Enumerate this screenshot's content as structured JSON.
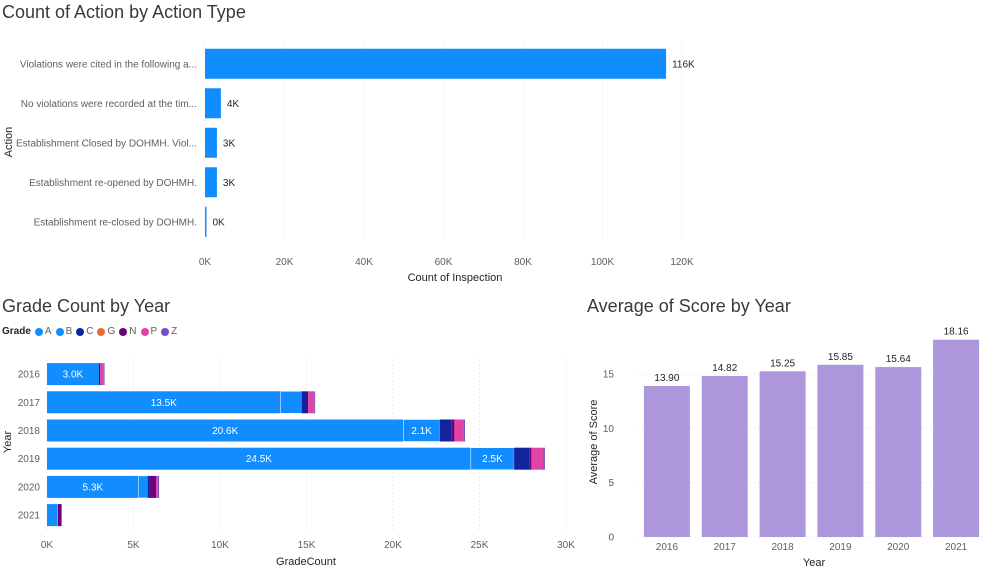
{
  "colors": {
    "A": "#118dff",
    "B": "#118dff",
    "C": "#12239e",
    "G": "#e66c37",
    "N": "#6b007b",
    "P": "#e044a7",
    "Z": "#744ec2",
    "action_bar": "#118dff",
    "score_bar": "#ad97dc"
  },
  "chart_data": [
    {
      "type": "bar",
      "orientation": "horizontal",
      "title": "Count of Action by Action Type",
      "xlabel": "Count of Inspection",
      "ylabel": "Action",
      "categories": [
        "Violations were cited in the following a...",
        "No violations were recorded at the tim...",
        "Establishment Closed by DOHMH. Viol...",
        "Establishment re-opened by DOHMH.",
        "Establishment re-closed by DOHMH."
      ],
      "values": [
        116000,
        4000,
        3000,
        3000,
        150
      ],
      "data_labels": [
        "116K",
        "4K",
        "3K",
        "3K",
        "0K"
      ],
      "xlim": [
        0,
        120000
      ],
      "xticks": [
        0,
        20000,
        40000,
        60000,
        80000,
        100000,
        120000
      ],
      "xtick_labels": [
        "0K",
        "20K",
        "40K",
        "60K",
        "80K",
        "100K",
        "120K"
      ],
      "grid": true
    },
    {
      "type": "bar",
      "orientation": "horizontal",
      "stacked": true,
      "title": "Grade Count by Year",
      "xlabel": "GradeCount",
      "ylabel": "Year",
      "legend_title": "Grade",
      "legend_position": "top-left",
      "categories": [
        "2016",
        "2017",
        "2018",
        "2019",
        "2020",
        "2021"
      ],
      "series": [
        {
          "name": "A",
          "values": [
            3000,
            13500,
            20600,
            24500,
            5300,
            600
          ],
          "labels": [
            "3.0K",
            "13.5K",
            "20.6K",
            "24.5K",
            "5.3K",
            ""
          ]
        },
        {
          "name": "B",
          "values": [
            0,
            1200,
            2100,
            2500,
            500,
            20
          ],
          "labels": [
            "",
            "",
            "2.1K",
            "2.5K",
            "",
            ""
          ]
        },
        {
          "name": "C",
          "values": [
            0,
            300,
            700,
            900,
            100,
            10
          ],
          "labels": [
            "",
            "",
            "",
            "",
            "",
            ""
          ]
        },
        {
          "name": "G",
          "values": [
            0,
            0,
            0,
            0,
            0,
            0
          ],
          "labels": [
            "",
            "",
            "",
            "",
            "",
            ""
          ]
        },
        {
          "name": "N",
          "values": [
            80,
            100,
            150,
            100,
            400,
            180
          ],
          "labels": [
            "",
            "",
            "",
            "",
            "",
            ""
          ]
        },
        {
          "name": "P",
          "values": [
            200,
            350,
            550,
            700,
            100,
            0
          ],
          "labels": [
            "",
            "",
            "",
            "",
            "",
            ""
          ]
        },
        {
          "name": "Z",
          "values": [
            40,
            50,
            60,
            80,
            80,
            20
          ],
          "labels": [
            "",
            "",
            "",
            "",
            "",
            ""
          ]
        }
      ],
      "xlim": [
        0,
        30000
      ],
      "xticks": [
        0,
        5000,
        10000,
        15000,
        20000,
        25000,
        30000
      ],
      "xtick_labels": [
        "0K",
        "5K",
        "10K",
        "15K",
        "20K",
        "25K",
        "30K"
      ],
      "grid": true
    },
    {
      "type": "bar",
      "title": "Average of Score by Year",
      "xlabel": "Year",
      "ylabel": "Average of Score",
      "categories": [
        "2016",
        "2017",
        "2018",
        "2019",
        "2020",
        "2021"
      ],
      "values": [
        13.9,
        14.82,
        15.25,
        15.85,
        15.64,
        18.16
      ],
      "data_labels": [
        "13.90",
        "14.82",
        "15.25",
        "15.85",
        "15.64",
        "18.16"
      ],
      "ylim": [
        0,
        18.5
      ],
      "yticks": [
        0,
        5,
        10,
        15
      ],
      "ytick_labels": [
        "0",
        "5",
        "10",
        "15"
      ],
      "grid": true
    }
  ]
}
